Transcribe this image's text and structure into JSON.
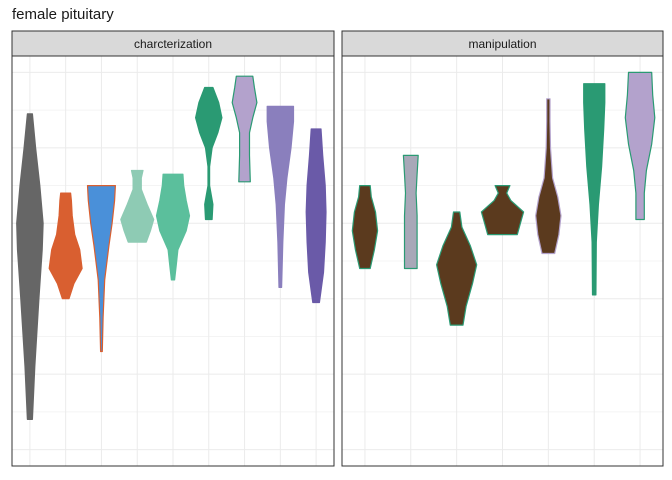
{
  "chart_data": {
    "type": "violin",
    "title": "female pituitary",
    "xlabel": "",
    "ylabel": "",
    "y_range": [
      0,
      100
    ],
    "grid": true,
    "legend": "none",
    "panels": [
      {
        "label": "charcterization",
        "groups": [
          {
            "fill": "#666666",
            "stroke": "#666666",
            "y_min": 8,
            "y_max": 89,
            "profile": [
              [
                8,
                0.15
              ],
              [
                22,
                0.3
              ],
              [
                40,
                0.55
              ],
              [
                53,
                0.75
              ],
              [
                60,
                0.8
              ],
              [
                70,
                0.6
              ],
              [
                80,
                0.35
              ],
              [
                89,
                0.15
              ]
            ]
          },
          {
            "fill": "#d95f30",
            "stroke": "#d95f30",
            "y_min": 40,
            "y_max": 68,
            "profile": [
              [
                40,
                0.2
              ],
              [
                44,
                0.5
              ],
              [
                48,
                1.0
              ],
              [
                53,
                0.85
              ],
              [
                57,
                0.55
              ],
              [
                62,
                0.4
              ],
              [
                66,
                0.35
              ],
              [
                68,
                0.3
              ]
            ]
          },
          {
            "fill": "#4a90d9",
            "stroke": "#d95f30",
            "y_min": 26,
            "y_max": 70,
            "profile": [
              [
                26,
                0.05
              ],
              [
                35,
                0.1
              ],
              [
                45,
                0.2
              ],
              [
                54,
                0.45
              ],
              [
                60,
                0.65
              ],
              [
                66,
                0.8
              ],
              [
                70,
                0.85
              ]
            ]
          },
          {
            "fill": "#8ecbb4",
            "stroke": "#8ecbb4",
            "y_min": 55,
            "y_max": 74,
            "profile": [
              [
                55,
                0.55
              ],
              [
                58,
                0.8
              ],
              [
                61,
                1.0
              ],
              [
                65,
                0.6
              ],
              [
                69,
                0.25
              ],
              [
                72,
                0.25
              ],
              [
                74,
                0.35
              ]
            ]
          },
          {
            "fill": "#5bbf9c",
            "stroke": "#5bbf9c",
            "y_min": 45,
            "y_max": 73,
            "profile": [
              [
                45,
                0.1
              ],
              [
                49,
                0.2
              ],
              [
                53,
                0.3
              ],
              [
                58,
                0.8
              ],
              [
                62,
                1.0
              ],
              [
                66,
                0.8
              ],
              [
                70,
                0.65
              ],
              [
                73,
                0.6
              ]
            ]
          },
          {
            "fill": "#2a9a73",
            "stroke": "#2a9a73",
            "y_min": 61,
            "y_max": 96,
            "profile": [
              [
                61,
                0.2
              ],
              [
                65,
                0.25
              ],
              [
                70,
                0.05
              ],
              [
                75,
                0.05
              ],
              [
                80,
                0.2
              ],
              [
                84,
                0.55
              ],
              [
                88,
                0.8
              ],
              [
                92,
                0.6
              ],
              [
                96,
                0.25
              ]
            ]
          },
          {
            "fill": "#b3a2cc",
            "stroke": "#2a9a73",
            "y_min": 71,
            "y_max": 99,
            "profile": [
              [
                71,
                0.35
              ],
              [
                78,
                0.3
              ],
              [
                84,
                0.3
              ],
              [
                88,
                0.5
              ],
              [
                92,
                0.75
              ],
              [
                96,
                0.6
              ],
              [
                99,
                0.5
              ]
            ]
          },
          {
            "fill": "#8a7fbd",
            "stroke": "#8a7fbd",
            "y_min": 43,
            "y_max": 91,
            "profile": [
              [
                43,
                0.08
              ],
              [
                55,
                0.15
              ],
              [
                65,
                0.25
              ],
              [
                72,
                0.4
              ],
              [
                80,
                0.65
              ],
              [
                87,
                0.8
              ],
              [
                91,
                0.8
              ]
            ]
          },
          {
            "fill": "#6a5aa8",
            "stroke": "#6a5aa8",
            "y_min": 39,
            "y_max": 85,
            "profile": [
              [
                39,
                0.2
              ],
              [
                47,
                0.45
              ],
              [
                55,
                0.55
              ],
              [
                63,
                0.6
              ],
              [
                70,
                0.55
              ],
              [
                78,
                0.4
              ],
              [
                85,
                0.3
              ]
            ]
          }
        ]
      },
      {
        "label": "manipulation",
        "groups": [
          {
            "fill": "#5b3a1e",
            "stroke": "#2a9a73",
            "y_min": 48,
            "y_max": 70,
            "profile": [
              [
                48,
                0.25
              ],
              [
                53,
                0.45
              ],
              [
                58,
                0.6
              ],
              [
                63,
                0.5
              ],
              [
                67,
                0.3
              ],
              [
                70,
                0.25
              ]
            ]
          },
          {
            "fill": "#a8a8b8",
            "stroke": "#2a9a73",
            "y_min": 48,
            "y_max": 78,
            "profile": [
              [
                48,
                0.3
              ],
              [
                55,
                0.3
              ],
              [
                62,
                0.3
              ],
              [
                68,
                0.25
              ],
              [
                73,
                0.3
              ],
              [
                78,
                0.35
              ]
            ]
          },
          {
            "fill": "#5b3a1e",
            "stroke": "#2a9a73",
            "y_min": 33,
            "y_max": 63,
            "profile": [
              [
                33,
                0.3
              ],
              [
                38,
                0.45
              ],
              [
                44,
                0.75
              ],
              [
                49,
                0.95
              ],
              [
                54,
                0.65
              ],
              [
                59,
                0.25
              ],
              [
                63,
                0.15
              ]
            ]
          },
          {
            "fill": "#5b3a1e",
            "stroke": "#2a9a73",
            "y_min": 57,
            "y_max": 70,
            "profile": [
              [
                57,
                0.7
              ],
              [
                60,
                0.85
              ],
              [
                63,
                1.0
              ],
              [
                66,
                0.4
              ],
              [
                68,
                0.2
              ],
              [
                70,
                0.35
              ]
            ]
          },
          {
            "fill": "#5b3a1e",
            "stroke": "#b3a2cc",
            "y_min": 52,
            "y_max": 93,
            "profile": [
              [
                52,
                0.3
              ],
              [
                57,
                0.5
              ],
              [
                62,
                0.6
              ],
              [
                67,
                0.45
              ],
              [
                72,
                0.2
              ],
              [
                80,
                0.1
              ],
              [
                87,
                0.08
              ],
              [
                93,
                0.08
              ]
            ]
          },
          {
            "fill": "#2a9a73",
            "stroke": "#2a9a73",
            "y_min": 41,
            "y_max": 97,
            "profile": [
              [
                41,
                0.08
              ],
              [
                55,
                0.1
              ],
              [
                65,
                0.2
              ],
              [
                75,
                0.35
              ],
              [
                85,
                0.45
              ],
              [
                92,
                0.5
              ],
              [
                97,
                0.5
              ]
            ]
          },
          {
            "fill": "#b3a2cc",
            "stroke": "#2a9a73",
            "y_min": 61,
            "y_max": 100,
            "profile": [
              [
                61,
                0.2
              ],
              [
                68,
                0.2
              ],
              [
                74,
                0.3
              ],
              [
                81,
                0.55
              ],
              [
                88,
                0.7
              ],
              [
                94,
                0.6
              ],
              [
                100,
                0.55
              ]
            ]
          }
        ]
      }
    ]
  }
}
